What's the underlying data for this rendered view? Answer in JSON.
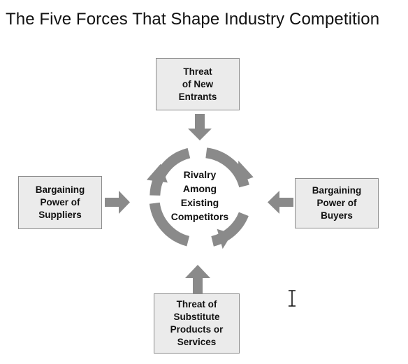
{
  "title": "The Five Forces That Shape Industry Competition",
  "center": {
    "label": "Rivalry\nAmong\nExisting\nCompetitors"
  },
  "forces": {
    "new_entrants": "Threat\nof New\nEntrants",
    "suppliers": "Bargaining\nPower of\nSuppliers",
    "buyers": "Bargaining\nPower of\nBuyers",
    "substitutes": "Threat of\nSubstitute\nProducts or\nServices"
  },
  "colors": {
    "arrow": "#8a8a8a",
    "box_fill": "#ebebeb",
    "box_border": "#8c8c8c",
    "text": "#111111"
  },
  "icons": {
    "cursor": "text-cursor-icon"
  }
}
